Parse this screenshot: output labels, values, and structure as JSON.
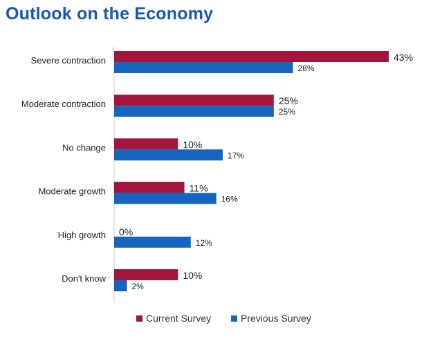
{
  "chart_data": {
    "type": "bar",
    "orientation": "horizontal",
    "title": "Outlook on the Economy",
    "categories": [
      "Severe contraction",
      "Moderate contraction",
      "No change",
      "Moderate growth",
      "High growth",
      "Don't know"
    ],
    "series": [
      {
        "name": "Current Survey",
        "color": "#a3153a",
        "values": [
          43,
          25,
          10,
          11,
          0,
          10
        ],
        "labels": [
          "43%",
          "25%",
          "10%",
          "11%",
          "0%",
          "10%"
        ]
      },
      {
        "name": "Previous Survey",
        "color": "#1565c0",
        "values": [
          28,
          25,
          17,
          16,
          12,
          2
        ],
        "labels": [
          "28%",
          "25%",
          "17%",
          "16%",
          "12%",
          "2%"
        ]
      }
    ],
    "xlim": [
      0,
      43
    ],
    "grid": false,
    "legend_position": "bottom"
  }
}
